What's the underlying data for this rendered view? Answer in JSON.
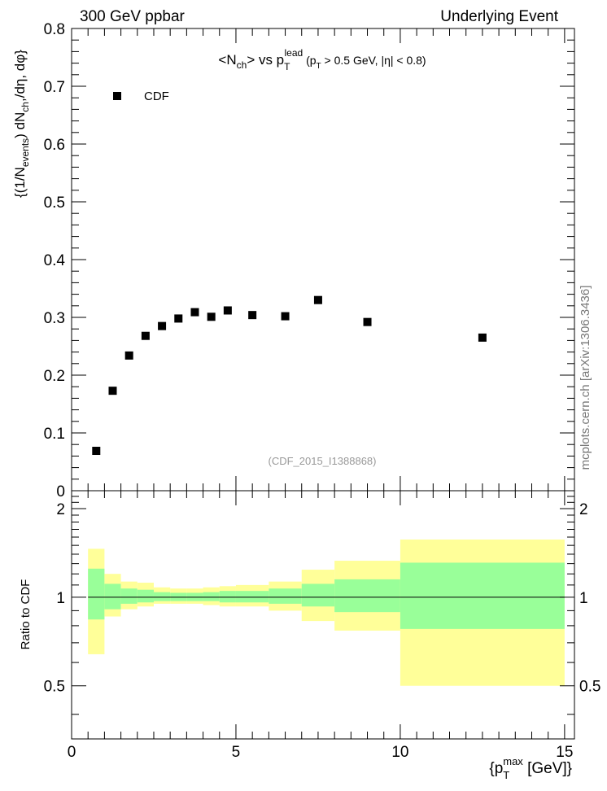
{
  "header": {
    "left": "300 GeV ppbar",
    "right": "Underlying Event"
  },
  "side_note": "mcplots.cern.ch [arXiv:1306.3436]",
  "watermark": "(CDF_2015_I1388868)",
  "colors": {
    "yellow_band": "#ffff99",
    "green_band": "#99ff99",
    "marker": "#000000",
    "reference_line": "#000000"
  },
  "chart_data": [
    {
      "type": "scatter",
      "title": "<Nch> vs pT lead (pT > 0.5 GeV, |η| < 0.8)",
      "ylabel": "{(1/N_events) dN_ch,/dη, dφ}",
      "ylim": [
        0,
        0.8
      ],
      "xlim": [
        0,
        15.3
      ],
      "yticks": [
        0,
        0.1,
        0.2,
        0.3,
        0.4,
        0.5,
        0.6,
        0.7,
        0.8
      ],
      "legend": {
        "position": "top-left",
        "entries": [
          "CDF"
        ]
      },
      "series": [
        {
          "name": "CDF",
          "x": [
            0.75,
            1.25,
            1.75,
            2.25,
            2.75,
            3.25,
            3.75,
            4.25,
            4.75,
            5.5,
            6.5,
            7.5,
            9.0,
            12.5
          ],
          "y": [
            0.069,
            0.173,
            0.234,
            0.268,
            0.285,
            0.298,
            0.309,
            0.301,
            0.312,
            0.304,
            0.302,
            0.33,
            0.292,
            0.265
          ]
        }
      ]
    },
    {
      "type": "area",
      "ylabel": "Ratio to CDF",
      "xlabel": "{p_T^max [GeV]}",
      "xlim": [
        0,
        15.3
      ],
      "ylim": [
        0.33,
        2.3
      ],
      "xticks": [
        0,
        5,
        10,
        15
      ],
      "yticks": [
        0.5,
        1,
        2
      ],
      "reference_value": 1,
      "bins": [
        {
          "lo": 0.5,
          "hi": 1.0,
          "g": [
            0.84,
            1.25
          ],
          "y": [
            0.64,
            1.46
          ]
        },
        {
          "lo": 1.0,
          "hi": 1.5,
          "g": [
            0.91,
            1.11
          ],
          "y": [
            0.86,
            1.2
          ]
        },
        {
          "lo": 1.5,
          "hi": 2.0,
          "g": [
            0.95,
            1.07
          ],
          "y": [
            0.91,
            1.13
          ]
        },
        {
          "lo": 2.0,
          "hi": 2.5,
          "g": [
            0.96,
            1.06
          ],
          "y": [
            0.93,
            1.12
          ]
        },
        {
          "lo": 2.5,
          "hi": 3.0,
          "g": [
            0.97,
            1.04
          ],
          "y": [
            0.95,
            1.08
          ]
        },
        {
          "lo": 3.0,
          "hi": 3.5,
          "g": [
            0.97,
            1.035
          ],
          "y": [
            0.95,
            1.07
          ]
        },
        {
          "lo": 3.5,
          "hi": 4.0,
          "g": [
            0.97,
            1.035
          ],
          "y": [
            0.95,
            1.07
          ]
        },
        {
          "lo": 4.0,
          "hi": 4.5,
          "g": [
            0.97,
            1.04
          ],
          "y": [
            0.94,
            1.08
          ]
        },
        {
          "lo": 4.5,
          "hi": 5.0,
          "g": [
            0.96,
            1.05
          ],
          "y": [
            0.93,
            1.09
          ]
        },
        {
          "lo": 5.0,
          "hi": 6.0,
          "g": [
            0.96,
            1.05
          ],
          "y": [
            0.93,
            1.1
          ]
        },
        {
          "lo": 6.0,
          "hi": 7.0,
          "g": [
            0.95,
            1.07
          ],
          "y": [
            0.9,
            1.13
          ]
        },
        {
          "lo": 7.0,
          "hi": 8.0,
          "g": [
            0.93,
            1.11
          ],
          "y": [
            0.83,
            1.24
          ]
        },
        {
          "lo": 8.0,
          "hi": 10.0,
          "g": [
            0.89,
            1.15
          ],
          "y": [
            0.77,
            1.33
          ]
        },
        {
          "lo": 10.0,
          "hi": 15.0,
          "g": [
            0.78,
            1.31
          ],
          "y": [
            0.5,
            1.57
          ]
        }
      ]
    }
  ]
}
